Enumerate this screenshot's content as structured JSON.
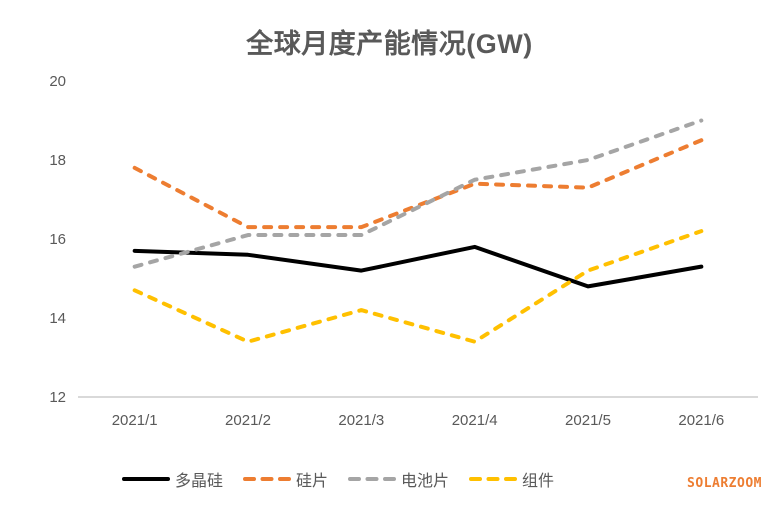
{
  "title": "全球月度产能情况(GW)",
  "watermark": "SOLARZOOM",
  "colors": {
    "title_text": "#595959",
    "axis_text": "#595959",
    "axis_line": "#D9D9D9",
    "background": "#FFFFFF",
    "watermark": "#ED7D31"
  },
  "chart_data": {
    "type": "line",
    "title": "全球月度产能情况(GW)",
    "categories": [
      "2021/1",
      "2021/2",
      "2021/3",
      "2021/4",
      "2021/5",
      "2021/6"
    ],
    "series": [
      {
        "name": "多晶硅",
        "key": "polysilicon",
        "color": "#000000",
        "dashed": false,
        "values": [
          15.7,
          15.6,
          15.2,
          15.8,
          14.8,
          15.3
        ]
      },
      {
        "name": "硅片",
        "key": "wafer",
        "color": "#ED7D31",
        "dashed": true,
        "values": [
          17.8,
          16.3,
          16.3,
          17.4,
          17.3,
          18.5
        ]
      },
      {
        "name": "电池片",
        "key": "cell",
        "color": "#A5A5A5",
        "dashed": true,
        "values": [
          15.3,
          16.1,
          16.1,
          17.5,
          18.0,
          19.0
        ]
      },
      {
        "name": "组件",
        "key": "module",
        "color": "#FFC000",
        "dashed": true,
        "values": [
          14.7,
          13.4,
          14.2,
          13.4,
          15.2,
          16.2
        ]
      }
    ],
    "xlabel": "",
    "ylabel": "",
    "ylim": [
      12,
      20
    ],
    "yticks": [
      20,
      18,
      16,
      14,
      12
    ],
    "grid": false,
    "legend_position": "bottom"
  }
}
